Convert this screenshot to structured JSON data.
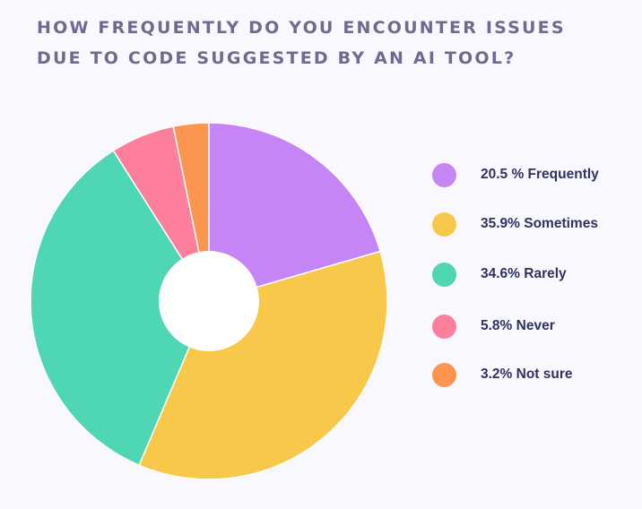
{
  "chart_data": {
    "type": "pie",
    "title": "How frequently do you encounter issues due to code suggested by an AI tool?",
    "slices": [
      {
        "label": "Frequently",
        "value": 20.5,
        "legend": "20.5 % Frequently",
        "color": "#c685f4"
      },
      {
        "label": "Sometimes",
        "value": 35.9,
        "legend": "35.9% Sometimes",
        "color": "#f8c84b"
      },
      {
        "label": "Rarely",
        "value": 34.6,
        "legend": "34.6% Rarely",
        "color": "#4ed6b5"
      },
      {
        "label": "Never",
        "value": 5.8,
        "legend": "5.8% Never",
        "color": "#fd7f9b"
      },
      {
        "label": "Not sure",
        "value": 3.2,
        "legend": "3.2% Not sure",
        "color": "#fc9550"
      }
    ],
    "donut": true,
    "legend_position": "right"
  },
  "colors": {
    "background": "#f9f8fe",
    "title": "#6b6c8f",
    "legend_text": "#2f3260"
  }
}
